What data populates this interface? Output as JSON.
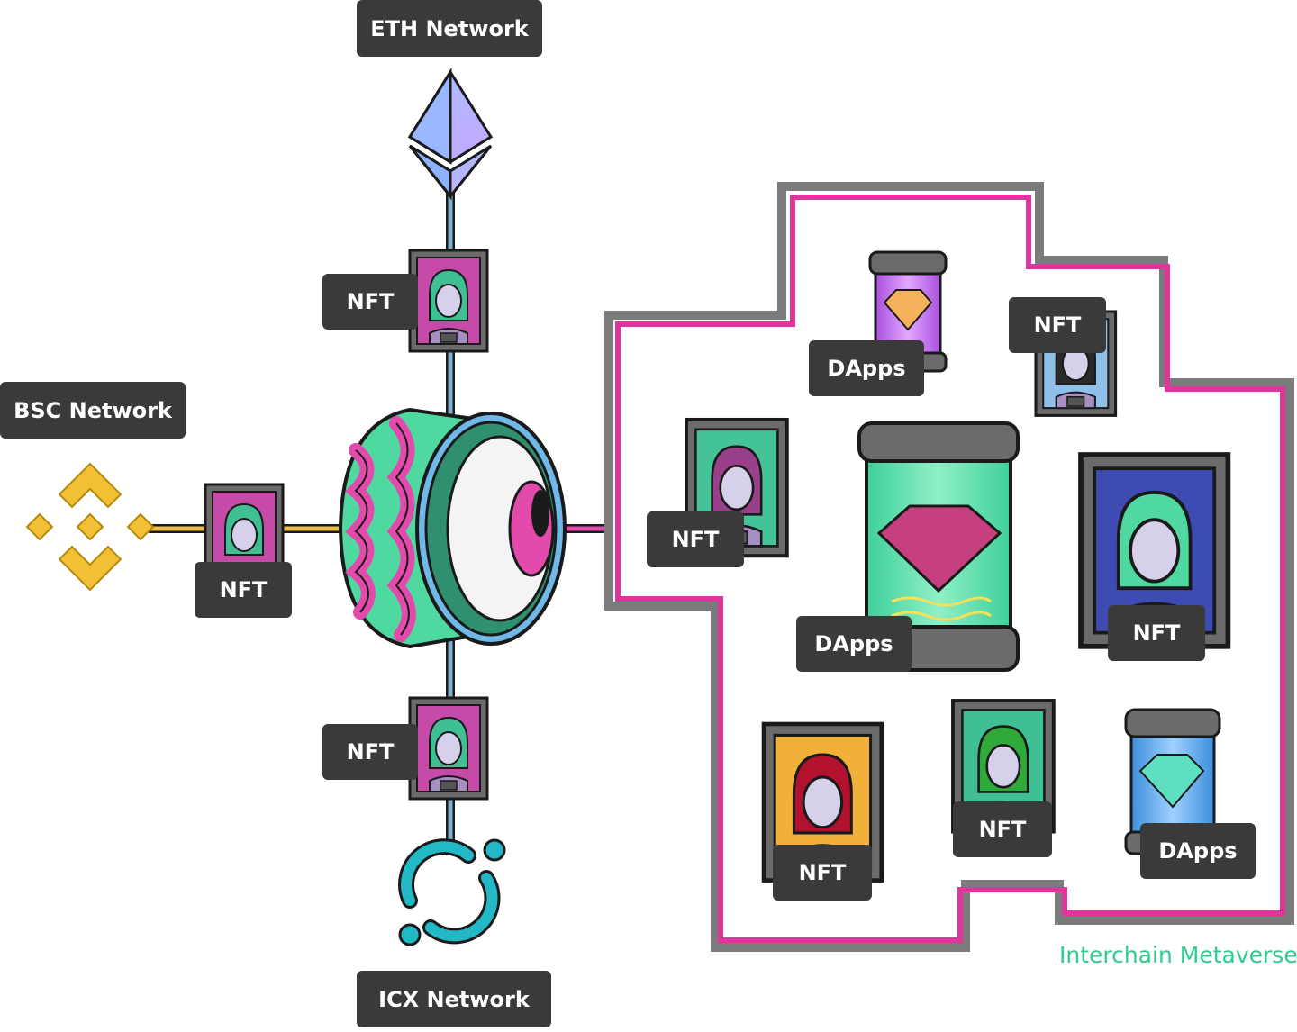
{
  "networks": {
    "eth": "ETH Network",
    "bsc": "BSC Network",
    "icx": "ICX Network"
  },
  "labels": {
    "nft": "NFT",
    "dapps": "DApps"
  },
  "metaverse": {
    "caption": "Interchain Metaverse"
  },
  "colors": {
    "label_bg": "#3a3a3a",
    "label_text": "#ffffff",
    "eth_purple": "#b49ef5",
    "eth_blue": "#6aa6f0",
    "binance_gold": "#f3c035",
    "icx_teal": "#22b8c5",
    "metaverse_pink": "#e0359d",
    "metaverse_gray": "#7b7b7b",
    "caption_green": "#2ecc8e",
    "hub_green": "#4fd8a0",
    "hub_pink": "#e24bab"
  }
}
